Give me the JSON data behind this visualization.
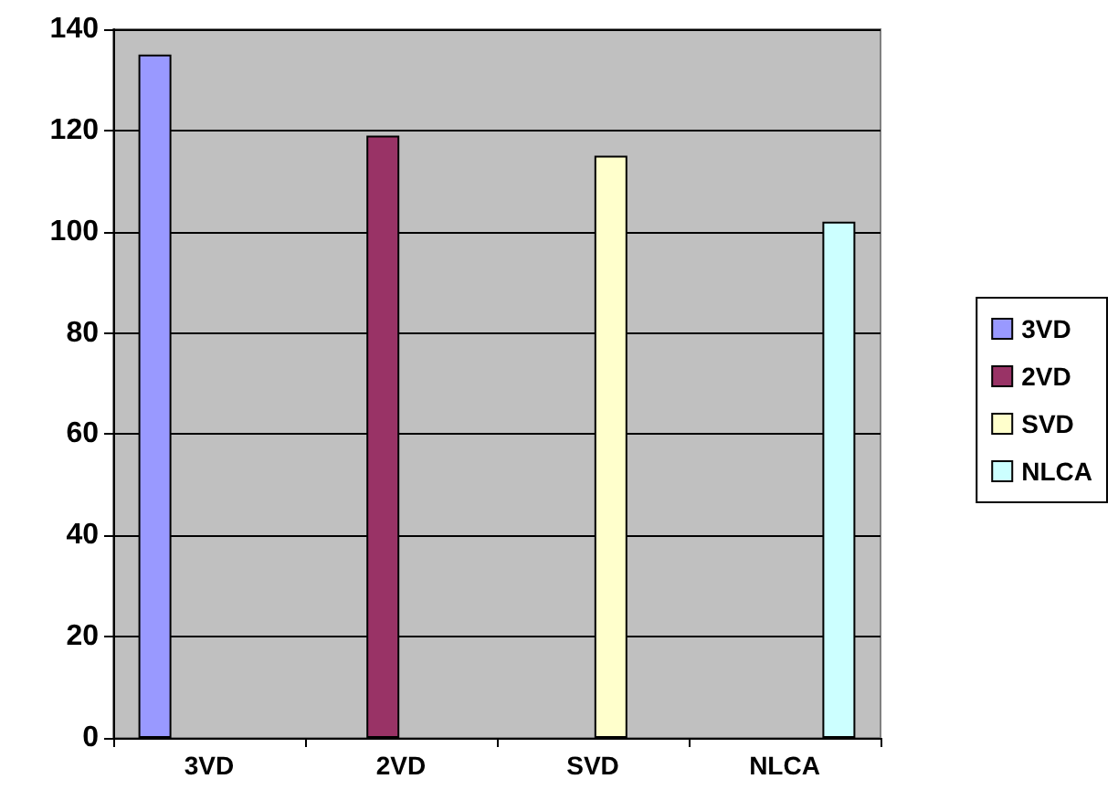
{
  "chart_data": {
    "type": "bar",
    "categories": [
      "3VD",
      "2VD",
      "SVD",
      "NLCA"
    ],
    "series": [
      {
        "name": "3VD",
        "color": "#9999ff",
        "values": [
          135,
          null,
          null,
          null
        ]
      },
      {
        "name": "2VD",
        "color": "#993366",
        "values": [
          null,
          119,
          null,
          null
        ]
      },
      {
        "name": "SVD",
        "color": "#ffffcc",
        "values": [
          null,
          null,
          115,
          null
        ]
      },
      {
        "name": "NLCA",
        "color": "#ccffff",
        "values": [
          null,
          null,
          null,
          102
        ]
      }
    ],
    "ylim": [
      0,
      140
    ],
    "yticks": [
      0,
      20,
      40,
      60,
      80,
      100,
      120,
      140
    ],
    "grid": "y",
    "legend": "right"
  }
}
